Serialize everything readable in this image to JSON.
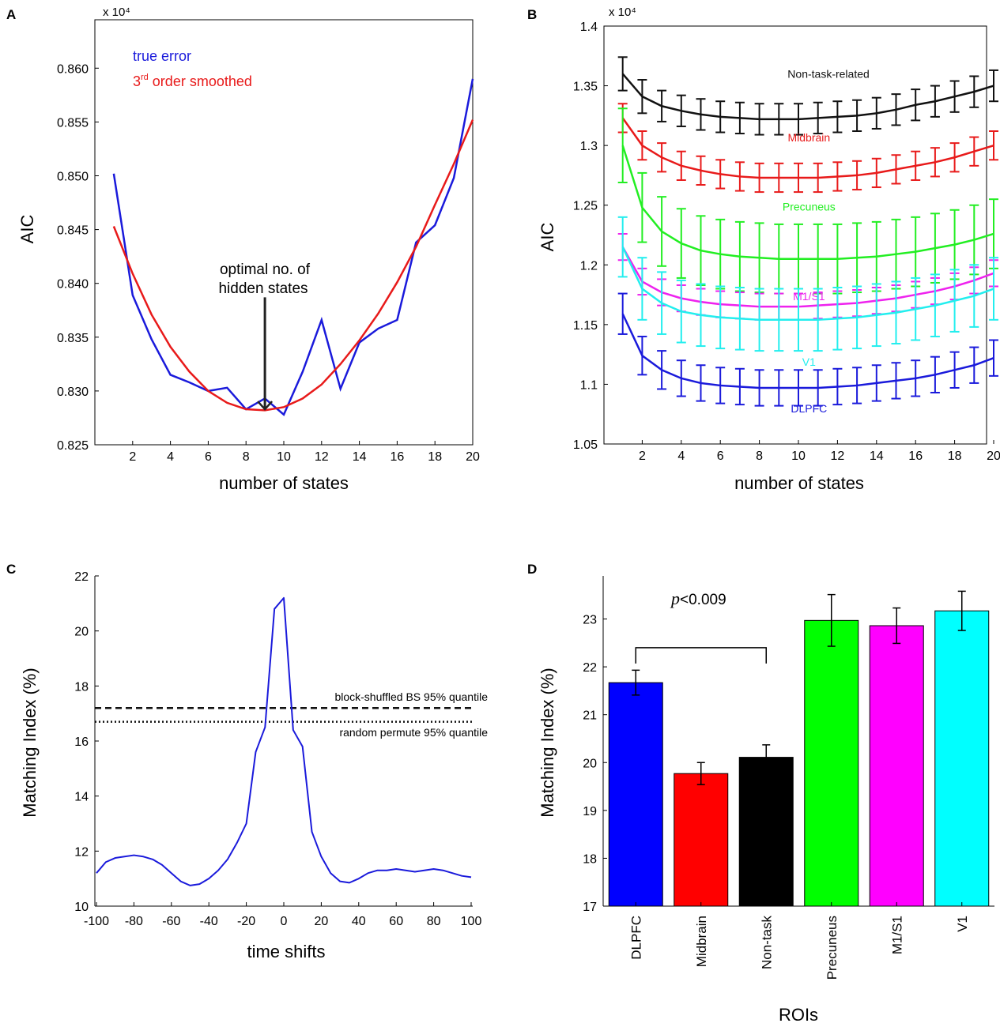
{
  "colors": {
    "blue": "#1a1adb",
    "red": "#e81a1a",
    "black": "#111111",
    "green": "#22ee22",
    "magenta": "#ee22ee",
    "cyan": "#22eeee",
    "bar_blue": "#0000ff",
    "bar_red": "#ff0000",
    "bar_black": "#000000",
    "bar_green": "#00ff00",
    "bar_magenta": "#ff00ff",
    "bar_cyan": "#00ffff"
  },
  "chart_data": [
    {
      "panel": "A",
      "type": "line",
      "title": "",
      "xlabel": "number of states",
      "ylabel": "AIC",
      "y_multiplier": "x 10⁴",
      "xlim": [
        0,
        20
      ],
      "ylim": [
        0.825,
        0.8645
      ],
      "xticks": [
        2,
        4,
        6,
        8,
        10,
        12,
        14,
        16,
        18,
        20
      ],
      "yticks": [
        0.825,
        0.83,
        0.835,
        0.84,
        0.845,
        0.85,
        0.855,
        0.86
      ],
      "ytick_labels": [
        "0.825",
        "0.830",
        "0.835",
        "0.840",
        "0.845",
        "0.850",
        "0.855",
        "0.860"
      ],
      "legend": [
        "true error",
        "3rd order smoothed"
      ],
      "legend_placement": "top-left",
      "annotation": {
        "lines": [
          "optimal no. of",
          "hidden states"
        ],
        "x": 9,
        "y_from": 0.8387,
        "y_to": 0.8283
      },
      "series": [
        {
          "name": "true error",
          "color": "blue",
          "x": [
            1,
            2,
            3,
            4,
            5,
            6,
            7,
            8,
            9,
            10,
            11,
            12,
            13,
            14,
            15,
            16,
            17,
            18,
            19,
            20
          ],
          "values": [
            0.8502,
            0.8389,
            0.8348,
            0.8315,
            0.8308,
            0.83,
            0.8303,
            0.8283,
            0.8293,
            0.8278,
            0.8318,
            0.8366,
            0.8302,
            0.8345,
            0.8358,
            0.8366,
            0.8438,
            0.8454,
            0.8498,
            0.859
          ]
        },
        {
          "name": "3rd order smoothed",
          "color": "red",
          "x": [
            1,
            2,
            3,
            4,
            5,
            6,
            7,
            8,
            9,
            10,
            11,
            12,
            13,
            14,
            15,
            16,
            17,
            18,
            19,
            20
          ],
          "values": [
            0.8453,
            0.8409,
            0.8371,
            0.8341,
            0.8318,
            0.83,
            0.8289,
            0.8283,
            0.8282,
            0.8285,
            0.8293,
            0.8306,
            0.8325,
            0.8347,
            0.8372,
            0.8401,
            0.8434,
            0.8473,
            0.8511,
            0.8552
          ]
        }
      ]
    },
    {
      "panel": "B",
      "type": "line",
      "title": "",
      "xlabel": "number of states",
      "ylabel": "AIC",
      "y_multiplier": "x 10⁴",
      "xlim": [
        0,
        20
      ],
      "ylim": [
        1.05,
        1.4
      ],
      "xticks": [
        2,
        4,
        6,
        8,
        10,
        12,
        14,
        16,
        18,
        20
      ],
      "yticks": [
        1.05,
        1.1,
        1.15,
        1.2,
        1.25,
        1.3,
        1.35,
        1.4
      ],
      "ytick_labels": [
        "1.05",
        "1.1",
        "1.15",
        "1.2",
        "1.25",
        "1.3",
        "1.35",
        "1.4"
      ],
      "series": [
        {
          "name": "Non-task-related",
          "color": "black",
          "label_pos": [
            11.5,
            1.3565
          ],
          "values": [
            1.36,
            1.341,
            1.333,
            1.329,
            1.326,
            1.324,
            1.323,
            1.322,
            1.322,
            1.322,
            1.323,
            1.324,
            1.325,
            1.327,
            1.33,
            1.334,
            1.337,
            1.341,
            1.345,
            1.35
          ],
          "errors": [
            0.014,
            0.014,
            0.013,
            0.013,
            0.013,
            0.013,
            0.013,
            0.013,
            0.013,
            0.013,
            0.013,
            0.013,
            0.013,
            0.013,
            0.013,
            0.013,
            0.013,
            0.013,
            0.013,
            0.013
          ]
        },
        {
          "name": "Midbrain",
          "color": "red",
          "label_pos": [
            10.5,
            1.3035
          ],
          "values": [
            1.323,
            1.3,
            1.29,
            1.283,
            1.279,
            1.276,
            1.274,
            1.273,
            1.273,
            1.273,
            1.273,
            1.274,
            1.275,
            1.277,
            1.28,
            1.283,
            1.286,
            1.29,
            1.295,
            1.3
          ],
          "errors": [
            0.012,
            0.012,
            0.012,
            0.012,
            0.012,
            0.012,
            0.012,
            0.012,
            0.012,
            0.012,
            0.012,
            0.012,
            0.012,
            0.012,
            0.012,
            0.012,
            0.012,
            0.012,
            0.012,
            0.012
          ]
        },
        {
          "name": "Precuneus",
          "color": "green",
          "label_pos": [
            10.5,
            1.2455
          ],
          "values": [
            1.3,
            1.248,
            1.228,
            1.218,
            1.212,
            1.209,
            1.207,
            1.206,
            1.205,
            1.205,
            1.205,
            1.205,
            1.206,
            1.207,
            1.209,
            1.211,
            1.214,
            1.217,
            1.221,
            1.226
          ],
          "errors": [
            0.031,
            0.029,
            0.029,
            0.029,
            0.029,
            0.029,
            0.029,
            0.029,
            0.029,
            0.029,
            0.029,
            0.029,
            0.029,
            0.029,
            0.029,
            0.029,
            0.029,
            0.029,
            0.029,
            0.029
          ]
        },
        {
          "name": "M1/S1",
          "color": "magenta",
          "label_pos": [
            10.5,
            1.1705
          ],
          "values": [
            1.215,
            1.186,
            1.177,
            1.172,
            1.169,
            1.167,
            1.166,
            1.165,
            1.165,
            1.165,
            1.166,
            1.167,
            1.168,
            1.17,
            1.172,
            1.175,
            1.178,
            1.182,
            1.187,
            1.193
          ],
          "errors": [
            0.011,
            0.011,
            0.011,
            0.011,
            0.011,
            0.011,
            0.011,
            0.011,
            0.011,
            0.011,
            0.011,
            0.011,
            0.011,
            0.011,
            0.011,
            0.011,
            0.011,
            0.011,
            0.011,
            0.011
          ]
        },
        {
          "name": "V1",
          "color": "cyan",
          "label_pos": [
            10.5,
            1.1155
          ],
          "values": [
            1.215,
            1.18,
            1.168,
            1.161,
            1.158,
            1.156,
            1.155,
            1.154,
            1.154,
            1.154,
            1.154,
            1.155,
            1.156,
            1.158,
            1.16,
            1.163,
            1.166,
            1.17,
            1.174,
            1.18
          ],
          "errors": [
            0.025,
            0.026,
            0.026,
            0.026,
            0.026,
            0.026,
            0.026,
            0.026,
            0.026,
            0.026,
            0.026,
            0.026,
            0.026,
            0.026,
            0.026,
            0.026,
            0.026,
            0.026,
            0.026,
            0.026
          ]
        },
        {
          "name": "DLPFC",
          "color": "blue",
          "label_pos": [
            10.5,
            1.0765
          ],
          "values": [
            1.159,
            1.124,
            1.112,
            1.105,
            1.101,
            1.099,
            1.098,
            1.097,
            1.097,
            1.097,
            1.097,
            1.098,
            1.099,
            1.101,
            1.103,
            1.105,
            1.108,
            1.112,
            1.116,
            1.122
          ],
          "errors": [
            0.017,
            0.016,
            0.016,
            0.015,
            0.015,
            0.015,
            0.015,
            0.015,
            0.015,
            0.015,
            0.015,
            0.015,
            0.015,
            0.015,
            0.015,
            0.015,
            0.015,
            0.015,
            0.015,
            0.015
          ]
        }
      ]
    },
    {
      "panel": "C",
      "type": "line",
      "title": "",
      "xlabel": "time shifts",
      "ylabel": "Matching Index (%)",
      "xlim": [
        -100,
        100
      ],
      "ylim": [
        10,
        22
      ],
      "xticks": [
        -100,
        -80,
        -60,
        -40,
        -20,
        0,
        20,
        40,
        60,
        80,
        100
      ],
      "yticks": [
        10,
        12,
        14,
        16,
        18,
        20,
        22
      ],
      "thresholds": [
        {
          "label": "block-shuffled BS 95% quantile",
          "value": 17.2,
          "style": "dashed"
        },
        {
          "label": "random permute 95% quantile",
          "value": 16.7,
          "style": "dotted"
        }
      ],
      "series": [
        {
          "name": "matching index",
          "color": "blue",
          "x_start": -100,
          "x_step": 5,
          "values": [
            11.2,
            11.6,
            11.75,
            11.8,
            11.85,
            11.8,
            11.7,
            11.5,
            11.2,
            10.9,
            10.75,
            10.8,
            11.0,
            11.3,
            11.7,
            12.3,
            13.0,
            15.6,
            16.5,
            20.8,
            21.2,
            16.4,
            15.8,
            12.7,
            11.8,
            11.2,
            10.9,
            10.85,
            11.0,
            11.2,
            11.3,
            11.3,
            11.35,
            11.3,
            11.25,
            11.3,
            11.35,
            11.3,
            11.2,
            11.1,
            11.05
          ]
        }
      ]
    },
    {
      "panel": "D",
      "type": "bar",
      "title": "",
      "xlabel": "ROIs",
      "ylabel": "Matching Index (%)",
      "ylim": [
        17,
        23.9
      ],
      "yticks": [
        17,
        18,
        19,
        20,
        21,
        22,
        23
      ],
      "categories": [
        "DLPFC",
        "Midbrain",
        "Non-task",
        "Precuneus",
        "M1/S1",
        "V1"
      ],
      "values": [
        21.67,
        19.77,
        20.11,
        22.97,
        22.86,
        23.17
      ],
      "errors": [
        0.26,
        0.23,
        0.26,
        0.54,
        0.37,
        0.41
      ],
      "bar_colors": [
        "bar_blue",
        "bar_red",
        "bar_black",
        "bar_green",
        "bar_magenta",
        "bar_cyan"
      ],
      "significance": {
        "p_symbol": "p",
        "text": "<0.009",
        "from": 0,
        "to": 2,
        "y": 22.4
      }
    }
  ],
  "panels": {
    "A": {
      "letter": "A",
      "legend_true": "true error",
      "legend_smooth_pre": "3",
      "legend_smooth_sup": "rd",
      "legend_smooth_post": " order smoothed",
      "annot_1": "optimal no. of",
      "annot_2": "hidden states"
    },
    "B": {
      "letter": "B"
    },
    "C": {
      "letter": "C",
      "thresh_1": "block-shuffled BS 95% quantile",
      "thresh_2": "random permute 95% quantile"
    },
    "D": {
      "letter": "D"
    }
  }
}
